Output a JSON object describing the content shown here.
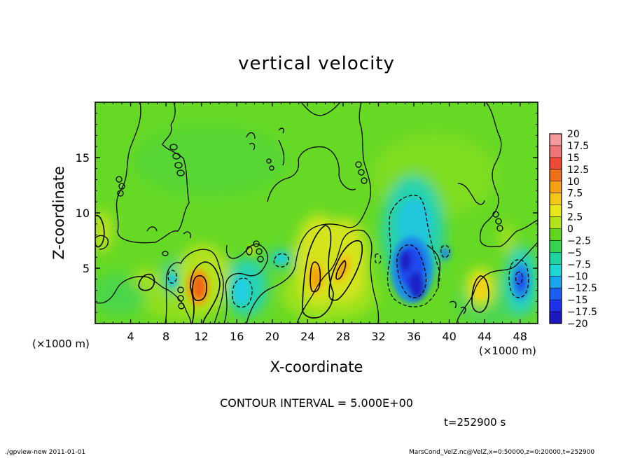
{
  "chart_data": {
    "type": "heatmap",
    "title": "vertical velocity",
    "xlabel": "X-coordinate",
    "ylabel": "Z-coordinate",
    "x_unit_label": "(×1000 m)",
    "xlim": [
      0,
      50
    ],
    "ylim": [
      0,
      20
    ],
    "x_ticks": [
      4,
      8,
      12,
      16,
      20,
      24,
      28,
      32,
      36,
      40,
      44,
      48
    ],
    "y_ticks": [
      5,
      10,
      15
    ],
    "contour_interval_text": "CONTOUR INTERVAL = 5.000E+00",
    "time_text": "t=252900 s",
    "colorbar": {
      "levels": [
        20,
        17.5,
        15,
        12.5,
        10,
        7.5,
        5,
        2.5,
        0,
        -2.5,
        -5,
        -7.5,
        -10,
        -12.5,
        -15,
        -17.5,
        -20
      ],
      "colors": [
        "#f49a9a",
        "#f07575",
        "#ee4a3a",
        "#f07018",
        "#f5a010",
        "#f5c818",
        "#e8e818",
        "#b4e21c",
        "#5fd61e",
        "#36d250",
        "#1ed3a4",
        "#1ed6d6",
        "#1aa6ee",
        "#1a5ef0",
        "#1e30ea",
        "#1e18c0",
        "#5a1ab4"
      ]
    },
    "features": [
      {
        "label": "updraft",
        "x": 11.8,
        "z": 3.0,
        "peak": 12.5
      },
      {
        "label": "updraft",
        "x": 24.8,
        "z": 4.3,
        "peak": 8
      },
      {
        "label": "updraft",
        "x": 27.3,
        "z": 5.0,
        "peak": 7.5
      },
      {
        "label": "updraft",
        "x": 43.6,
        "z": 3.0,
        "peak": 6
      },
      {
        "label": "updraft",
        "x": 1.0,
        "z": 8.0,
        "peak": 4
      },
      {
        "label": "updraft",
        "x": 5.3,
        "z": 4.0,
        "peak": 3
      },
      {
        "label": "downdraft",
        "x": 35.6,
        "z": 5.0,
        "peak": -14
      },
      {
        "label": "downdraft",
        "x": 36.6,
        "z": 3.2,
        "peak": -12
      },
      {
        "label": "downdraft",
        "x": 35.8,
        "z": 9.0,
        "peak": -6
      },
      {
        "label": "downdraft",
        "x": 47.5,
        "z": 4.0,
        "peak": -10
      },
      {
        "label": "downdraft",
        "x": 16.5,
        "z": 3.0,
        "peak": -5
      },
      {
        "label": "downdraft",
        "x": 8.5,
        "z": 4.0,
        "peak": -3.5
      },
      {
        "label": "downdraft",
        "x": 39.6,
        "z": 6.3,
        "peak": -7
      }
    ]
  },
  "footer": {
    "left": "./gpview-new  2011-01-01",
    "right": "MarsCond_VelZ.nc@VelZ,x=0:50000,z=0:20000,t=252900"
  }
}
